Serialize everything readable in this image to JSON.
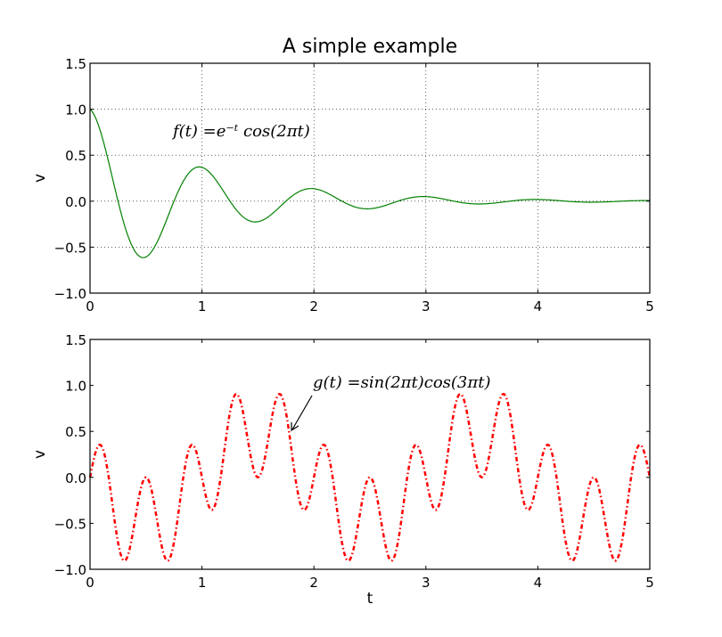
{
  "chart_data": [
    {
      "type": "line",
      "title": "A simple example",
      "xlabel": "",
      "ylabel": "v",
      "xlim": [
        0,
        5
      ],
      "ylim": [
        -1.0,
        1.5
      ],
      "grid": true,
      "xticks": [
        "0",
        "1",
        "2",
        "3",
        "4",
        "5"
      ],
      "yticks": [
        "−1.0",
        "−0.5",
        "0.0",
        "0.5",
        "1.0",
        "1.5"
      ],
      "series": [
        {
          "name": "f(t)",
          "expression": "exp(-t)*cos(2*pi*t)",
          "x_range": [
            0,
            5
          ],
          "x_step": 0.01,
          "color": "#008000",
          "style": "solid"
        }
      ],
      "annotation": {
        "text": "f(t) = e^{-t} cos(2πt)",
        "at": [
          0.75,
          0.7
        ]
      }
    },
    {
      "type": "line",
      "xlabel": "t",
      "ylabel": "v",
      "xlim": [
        0,
        5
      ],
      "ylim": [
        -1.0,
        1.5
      ],
      "grid": false,
      "xticks": [
        "0",
        "1",
        "2",
        "3",
        "4",
        "5"
      ],
      "yticks": [
        "−1.0",
        "−0.5",
        "0.0",
        "0.5",
        "1.0",
        "1.5"
      ],
      "series": [
        {
          "name": "g(t)",
          "expression": "sin(2*pi*t)*cos(3*pi*t)",
          "x_range": [
            0,
            5
          ],
          "x_step": 0.01,
          "color": "#ff0000",
          "style": "dashdot"
        }
      ],
      "annotation": {
        "text": "g(t) = sin(2πt)cos(3πt)",
        "at": [
          2.0,
          1.0
        ],
        "arrow_to": [
          1.8,
          0.5
        ]
      }
    }
  ],
  "labels": {
    "title": "A simple example",
    "ylabel_top": "v",
    "ylabel_bottom": "v",
    "xlabel_bottom": "t",
    "f_label": "f(t) =e⁻ᵗ cos(2πt)",
    "g_label": "g(t) =sin(2πt)cos(3πt)"
  }
}
